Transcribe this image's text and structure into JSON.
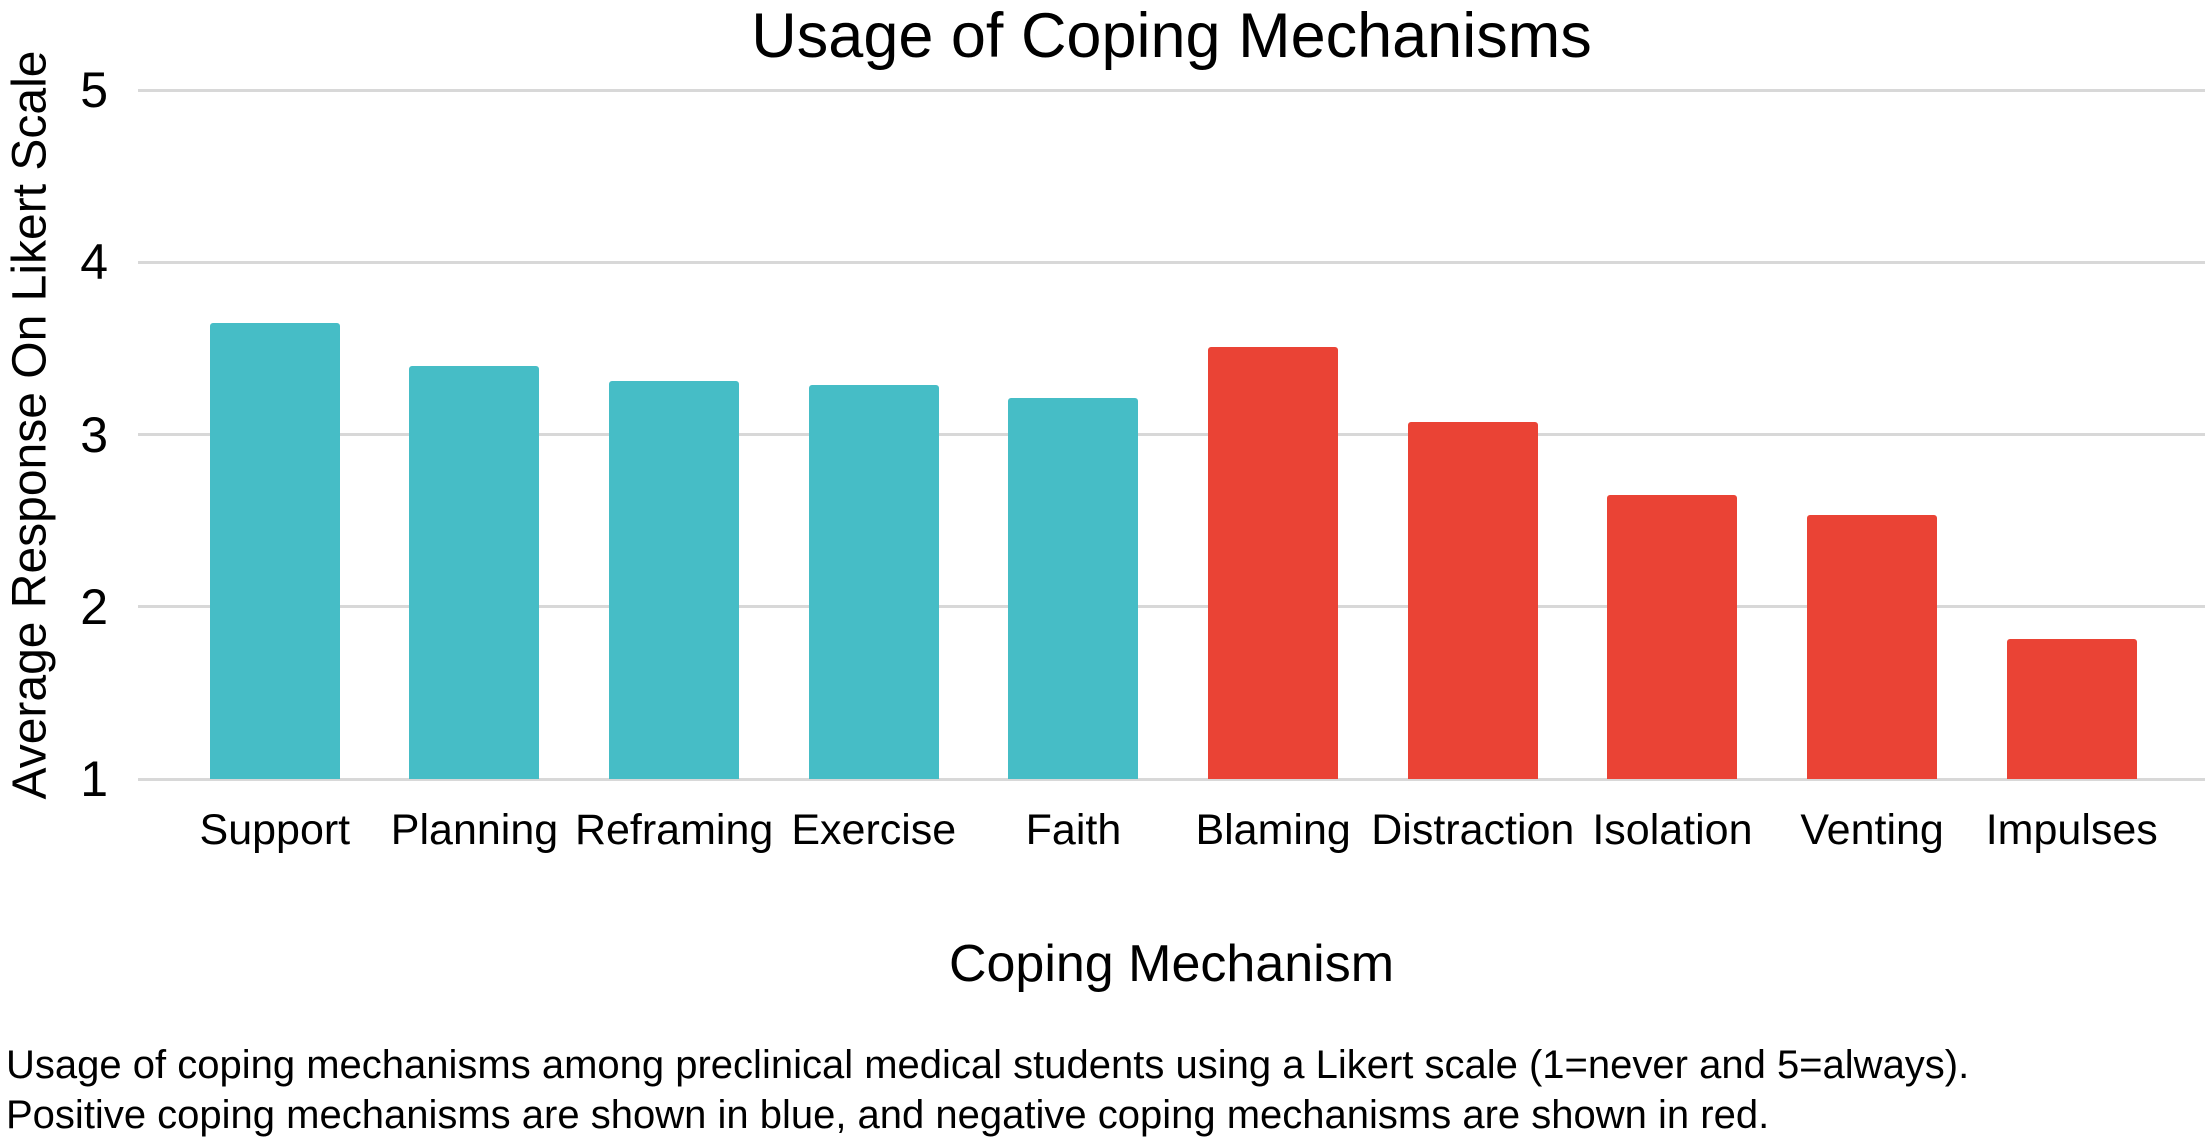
{
  "figure": {
    "title": "Usage of Coping Mechanisms",
    "x_axis_title": "Coping Mechanism",
    "y_axis_title": "Average Response On Likert Scale",
    "caption_line1": "Usage of coping mechanisms among preclinical medical students using a Likert scale (1=never and 5=always).",
    "caption_line2": "Positive coping mechanisms are shown in blue, and negative coping mechanisms are shown in red."
  },
  "colors": {
    "positive": "#46BDC6",
    "negative": "#EA4335",
    "gridline": "#D8D8D8",
    "text": "#000000",
    "background": "#FFFFFF"
  },
  "chart_data": {
    "type": "bar",
    "title": "Usage of Coping Mechanisms",
    "xlabel": "Coping Mechanism",
    "ylabel": "Average Response On Likert Scale",
    "categories": [
      "Support",
      "Planning",
      "Reframing",
      "Exercise",
      "Faith",
      "Blaming",
      "Distraction",
      "Isolation",
      "Venting",
      "Impulses"
    ],
    "values": [
      3.65,
      3.4,
      3.31,
      3.29,
      3.21,
      3.51,
      3.07,
      2.65,
      2.53,
      1.81
    ],
    "groups": [
      "positive",
      "positive",
      "positive",
      "positive",
      "positive",
      "negative",
      "negative",
      "negative",
      "negative",
      "negative"
    ],
    "ylim": [
      1,
      5
    ],
    "yticks": [
      1,
      2,
      3,
      4,
      5
    ],
    "grid": true,
    "legend": false,
    "bar_baseline": 1
  }
}
